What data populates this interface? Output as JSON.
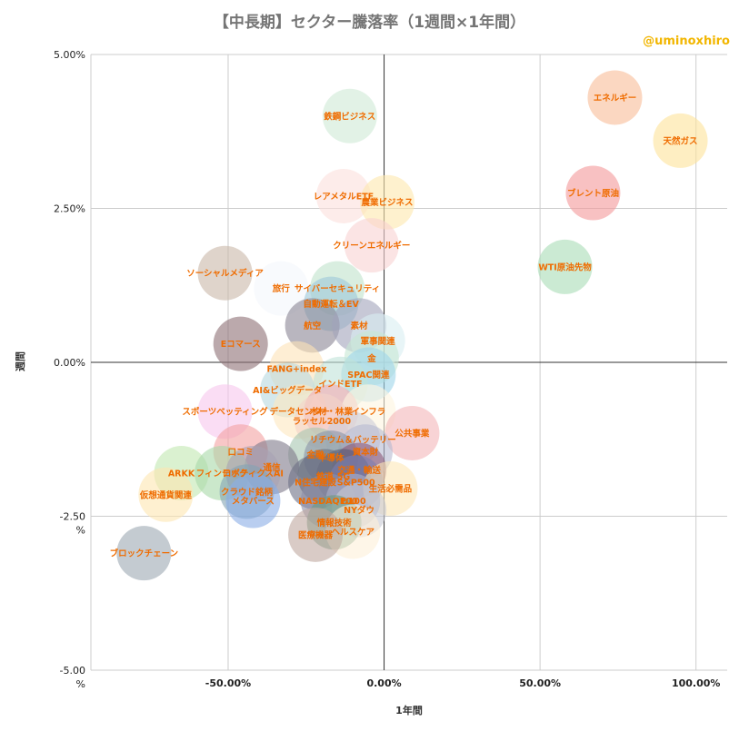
{
  "chart_data": {
    "type": "bubble-scatter",
    "title": "【中長期】セクター騰落率（1週間×1年間）",
    "credit": "@uminoxhiro",
    "xlabel": "1年間",
    "ylabel": "週間",
    "xlim": [
      -0.94,
      1.1
    ],
    "ylim": [
      -5.0,
      5.0
    ],
    "x_ticks": [
      {
        "value": -0.5,
        "label": "-50.00%"
      },
      {
        "value": 0.0,
        "label": "0.00%"
      },
      {
        "value": 0.5,
        "label": "50.00%"
      },
      {
        "value": 1.0,
        "label": "100.00%"
      }
    ],
    "y_ticks": [
      {
        "value": 5.0,
        "label": [
          "5.00%"
        ]
      },
      {
        "value": 2.5,
        "label": [
          "2.50%"
        ]
      },
      {
        "value": 0.0,
        "label": [
          "0.00%"
        ]
      },
      {
        "value": -2.5,
        "label": [
          "-2.50",
          "%"
        ]
      },
      {
        "value": -5.0,
        "label": [
          "-5.00",
          "%"
        ]
      }
    ],
    "points": [
      {
        "label": "エネルギー",
        "x": 0.74,
        "y": 4.3,
        "color": "#f8bd98"
      },
      {
        "label": "天然ガス",
        "x": 0.95,
        "y": 3.6,
        "color": "#fde39a"
      },
      {
        "label": "ブレント原油",
        "x": 0.67,
        "y": 2.75,
        "color": "#f4989a"
      },
      {
        "label": "WTI原油先物",
        "x": 0.58,
        "y": 1.55,
        "color": "#a9dcb6"
      },
      {
        "label": "鉄鋼ビジネス",
        "x": -0.11,
        "y": 4.0,
        "color": "#cfe9d6"
      },
      {
        "label": "レアメタルETF",
        "x": -0.13,
        "y": 2.7,
        "color": "#fbe0dc"
      },
      {
        "label": "農業ビジネス",
        "x": 0.01,
        "y": 2.6,
        "color": "#fde7ad"
      },
      {
        "label": "クリーンエネルギー",
        "x": -0.04,
        "y": 1.9,
        "color": "#f8d2d2"
      },
      {
        "label": "ソーシャルメディア",
        "x": -0.51,
        "y": 1.45,
        "color": "#c9b8a8"
      },
      {
        "label": "旅行",
        "x": -0.33,
        "y": 1.2,
        "color": "#f4f7fc"
      },
      {
        "label": "サイバーセキュリティ",
        "x": -0.15,
        "y": 1.2,
        "color": "#bfe3cc"
      },
      {
        "label": "自動運転＆EV",
        "x": -0.17,
        "y": 0.95,
        "color": "#9cc8d8"
      },
      {
        "label": "航空",
        "x": -0.23,
        "y": 0.6,
        "color": "#8b8594"
      },
      {
        "label": "素材",
        "x": -0.08,
        "y": 0.6,
        "color": "#a2a3bb"
      },
      {
        "label": "軍事関連",
        "x": -0.02,
        "y": 0.35,
        "color": "#d8eef2"
      },
      {
        "label": "Eコマース",
        "x": -0.46,
        "y": 0.3,
        "color": "#8e7074"
      },
      {
        "label": "金",
        "x": -0.04,
        "y": 0.07,
        "color": "#c7e7d3"
      },
      {
        "label": "SPAC関連",
        "x": -0.05,
        "y": -0.2,
        "color": "#9fd6ea"
      },
      {
        "label": "FANG+index",
        "x": -0.28,
        "y": -0.1,
        "color": "#fde2b8"
      },
      {
        "label": "インドETF",
        "x": -0.14,
        "y": -0.35,
        "color": "#bfe3d8"
      },
      {
        "label": "AI&ビッグデータ",
        "x": -0.31,
        "y": -0.45,
        "color": "#b8d8e0"
      },
      {
        "label": "スポーツベッティング",
        "x": -0.51,
        "y": -0.8,
        "color": "#f6c6ec"
      },
      {
        "label": "データセンター",
        "x": -0.27,
        "y": -0.8,
        "color": "#fde8c0"
      },
      {
        "label": "木材・林業",
        "x": -0.17,
        "y": -0.8,
        "color": "#f3aab0"
      },
      {
        "label": "インフラ",
        "x": -0.05,
        "y": -0.8,
        "color": "#fef5e0"
      },
      {
        "label": "ラッセル2000",
        "x": -0.2,
        "y": -0.95,
        "color": "#f4d4c8"
      },
      {
        "label": "公共事業",
        "x": 0.09,
        "y": -1.15,
        "color": "#f3b5b9"
      },
      {
        "label": "リチウム＆バッテリー",
        "x": -0.1,
        "y": -1.25,
        "color": "#cbcbd8"
      },
      {
        "label": "資本財",
        "x": -0.06,
        "y": -1.45,
        "color": "#b6b9d1"
      },
      {
        "label": "口コミ",
        "x": -0.46,
        "y": -1.45,
        "color": "#f4a2a2"
      },
      {
        "label": "金融",
        "x": -0.22,
        "y": -1.5,
        "color": "#a7c6b0"
      },
      {
        "label": "半導体",
        "x": -0.17,
        "y": -1.55,
        "color": "#8a95a8"
      },
      {
        "label": "通信",
        "x": -0.36,
        "y": -1.7,
        "color": "#7e7a8a"
      },
      {
        "label": "ARKK",
        "x": -0.65,
        "y": -1.8,
        "color": "#c2e8b0"
      },
      {
        "label": "フィンテック",
        "x": -0.52,
        "y": -1.8,
        "color": "#a8d9a8"
      },
      {
        "label": "ロボティクスAI",
        "x": -0.42,
        "y": -1.8,
        "color": "#a9a2b4"
      },
      {
        "label": "交通・輸送",
        "x": -0.08,
        "y": -1.75,
        "color": "#8e5a78"
      },
      {
        "label": "5G",
        "x": -0.13,
        "y": -1.85,
        "color": "#575b73"
      },
      {
        "label": "鉄道",
        "x": -0.19,
        "y": -1.85,
        "color": "#6a6f7e"
      },
      {
        "label": "N住宅建設",
        "x": -0.22,
        "y": -1.95,
        "color": "#6d6f85"
      },
      {
        "label": "S&P500",
        "x": -0.09,
        "y": -1.95,
        "color": "#7b7fb0"
      },
      {
        "label": "生活必需品",
        "x": 0.02,
        "y": -2.05,
        "color": "#fde8b8"
      },
      {
        "label": "クラウド銘柄",
        "x": -0.44,
        "y": -2.1,
        "color": "#84a3b4"
      },
      {
        "label": "仮想通貨関連",
        "x": -0.7,
        "y": -2.15,
        "color": "#fde6b0"
      },
      {
        "label": "メタバース",
        "x": -0.42,
        "y": -2.25,
        "color": "#8aaee6"
      },
      {
        "label": "NASDAQ100",
        "x": -0.18,
        "y": -2.25,
        "color": "#8d8fa8"
      },
      {
        "label": "P.100",
        "x": -0.1,
        "y": -2.25,
        "color": "#adb0c8"
      },
      {
        "label": "NYダウ",
        "x": -0.08,
        "y": -2.4,
        "color": "#c8c9d4"
      },
      {
        "label": "情報技術",
        "x": -0.16,
        "y": -2.6,
        "color": "#6b9a7e"
      },
      {
        "label": "ヘルスケア",
        "x": -0.1,
        "y": -2.75,
        "color": "#fdf0d8"
      },
      {
        "label": "医療機器",
        "x": -0.22,
        "y": -2.8,
        "color": "#bfa8a0"
      },
      {
        "label": "ブロックチェーン",
        "x": -0.77,
        "y": -3.1,
        "color": "#9ca8b2"
      }
    ]
  }
}
